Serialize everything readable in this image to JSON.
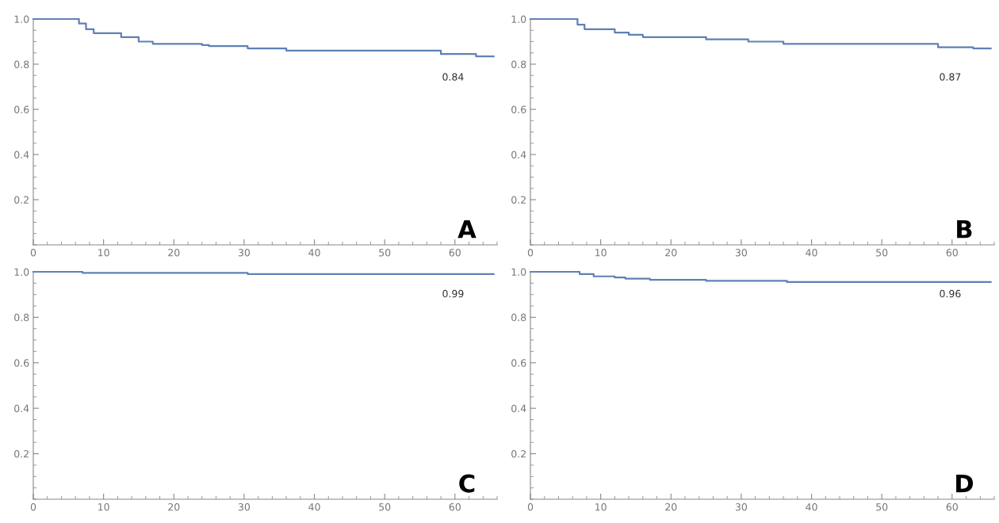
{
  "chart_data": [
    {
      "type": "step",
      "x": [
        0,
        5.9,
        6.5,
        7.5,
        8.6,
        11.7,
        12.5,
        15,
        17,
        24,
        25,
        30.5,
        36,
        55,
        58,
        63,
        65.5
      ],
      "values": [
        1.0,
        1.0,
        0.98,
        0.955,
        0.937,
        0.937,
        0.92,
        0.9,
        0.89,
        0.885,
        0.88,
        0.87,
        0.86,
        0.86,
        0.845,
        0.835,
        0.835
      ],
      "color": "#5e81b5",
      "xlim": [
        0,
        66
      ],
      "ylim": [
        0,
        1.0
      ],
      "xticks": [
        0,
        10,
        20,
        30,
        40,
        50,
        60
      ],
      "yticks": [
        {
          "value": 0.2,
          "label": "0.2"
        },
        {
          "value": 0.4,
          "label": "0.4"
        },
        {
          "value": 0.6,
          "label": "0.6"
        },
        {
          "value": 0.8,
          "label": "0.8"
        },
        {
          "value": 1.0,
          "label": "1.0"
        }
      ],
      "grid": false,
      "annotations": [
        "0.84",
        "A"
      ]
    },
    {
      "type": "step",
      "x": [
        0,
        5.7,
        6.7,
        7.7,
        11.8,
        12,
        14,
        16,
        21.7,
        25,
        31,
        36,
        55,
        58,
        63,
        65.5
      ],
      "values": [
        1.0,
        1.0,
        0.975,
        0.955,
        0.955,
        0.94,
        0.93,
        0.92,
        0.92,
        0.91,
        0.9,
        0.89,
        0.89,
        0.875,
        0.87,
        0.87
      ],
      "color": "#5e81b5",
      "xlim": [
        0,
        66
      ],
      "ylim": [
        0,
        1.0
      ],
      "xticks": [
        0,
        10,
        20,
        30,
        40,
        50,
        60
      ],
      "yticks": [
        {
          "value": 0.2,
          "label": "0.2"
        },
        {
          "value": 0.4,
          "label": "0.4"
        },
        {
          "value": 0.6,
          "label": "0.6"
        },
        {
          "value": 0.8,
          "label": "0.8"
        },
        {
          "value": 1.0,
          "label": "1.0"
        }
      ],
      "grid": false,
      "annotations": [
        "0.87",
        "B"
      ]
    },
    {
      "type": "step",
      "x": [
        0,
        7,
        30.5,
        65.5
      ],
      "values": [
        1.0,
        0.995,
        0.99,
        0.99
      ],
      "color": "#5e81b5",
      "xlim": [
        0,
        66
      ],
      "ylim": [
        0,
        1.0
      ],
      "xticks": [
        0,
        10,
        20,
        30,
        40,
        50,
        60
      ],
      "yticks": [
        {
          "value": 0.2,
          "label": "0.2"
        },
        {
          "value": 0.4,
          "label": "0.4"
        },
        {
          "value": 0.6,
          "label": "0.6"
        },
        {
          "value": 0.8,
          "label": "0.8"
        },
        {
          "value": 1.0,
          "label": "1.0"
        }
      ],
      "grid": false,
      "annotations": [
        "0.99",
        "C"
      ]
    },
    {
      "type": "step",
      "x": [
        0,
        6,
        7,
        9,
        12,
        13.5,
        17,
        25,
        36.5,
        65.5
      ],
      "values": [
        1.0,
        1.0,
        0.99,
        0.98,
        0.975,
        0.97,
        0.965,
        0.96,
        0.955,
        0.955
      ],
      "color": "#5e81b5",
      "xlim": [
        0,
        66
      ],
      "ylim": [
        0,
        1.0
      ],
      "xticks": [
        0,
        10,
        20,
        30,
        40,
        50,
        60
      ],
      "yticks": [
        {
          "value": 0.2,
          "label": "0.2"
        },
        {
          "value": 0.4,
          "label": "0.4"
        },
        {
          "value": 0.6,
          "label": "0.6"
        },
        {
          "value": 0.8,
          "label": "0.8"
        },
        {
          "value": 1.0,
          "label": "1.0"
        }
      ],
      "grid": false,
      "annotations": [
        "0.96",
        "D"
      ]
    }
  ]
}
